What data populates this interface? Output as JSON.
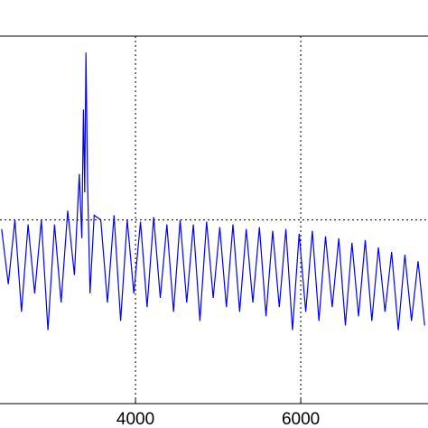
{
  "chart_data": {
    "type": "line",
    "x": [
      2380,
      2460,
      2540,
      2620,
      2700,
      2780,
      2860,
      2940,
      3020,
      3100,
      3180,
      3260,
      3320,
      3350,
      3370,
      3385,
      3400,
      3420,
      3450,
      3500,
      3580,
      3660,
      3740,
      3820,
      3900,
      3980,
      4060,
      4140,
      4220,
      4300,
      4380,
      4460,
      4540,
      4620,
      4700,
      4780,
      4860,
      4940,
      5020,
      5100,
      5180,
      5260,
      5340,
      5420,
      5500,
      5580,
      5660,
      5740,
      5820,
      5900,
      5980,
      6060,
      6140,
      6220,
      6300,
      6380,
      6460,
      6540,
      6620,
      6700,
      6780,
      6860,
      6940,
      7020,
      7100,
      7180,
      7260,
      7340,
      7420,
      7500
    ],
    "series": [
      {
        "color": "#0000ff",
        "values": [
          -0.1,
          -0.7,
          0.0,
          -1.0,
          -0.05,
          -0.8,
          0.0,
          -1.2,
          -0.05,
          -0.9,
          0.1,
          -0.6,
          0.5,
          -0.2,
          1.2,
          0.3,
          1.82,
          0.4,
          -0.8,
          0.05,
          0.0,
          -0.9,
          0.05,
          -1.1,
          0.0,
          -0.8,
          -0.02,
          -0.95,
          0.03,
          -0.85,
          -0.05,
          -1.0,
          0.0,
          -0.9,
          -0.05,
          -1.1,
          -0.02,
          -0.85,
          -0.08,
          -0.95,
          -0.05,
          -1.0,
          -0.1,
          -0.9,
          -0.08,
          -1.05,
          -0.12,
          -0.95,
          -0.1,
          -1.2,
          -0.15,
          -1.0,
          -0.12,
          -1.1,
          -0.18,
          -0.95,
          -0.2,
          -1.15,
          -0.25,
          -1.05,
          -0.22,
          -1.1,
          -0.3,
          -1.0,
          -0.35,
          -1.2,
          -0.38,
          -1.1,
          -0.45,
          -1.15
        ]
      }
    ],
    "xlim": [
      2360,
      7540
    ],
    "xticks": [
      4000,
      6000
    ],
    "ylim": [
      -2,
      2
    ],
    "yticks": [
      0
    ],
    "grid": true
  }
}
